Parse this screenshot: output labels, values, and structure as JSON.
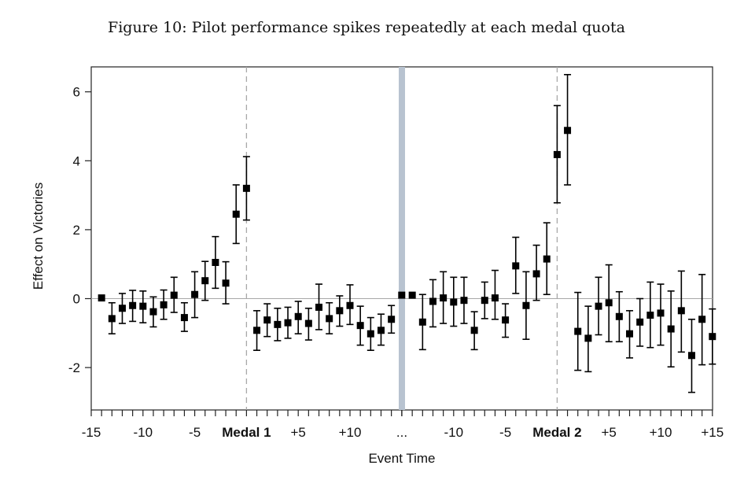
{
  "title": "Figure 10: Pilot performance spikes repeatedly at each medal quota",
  "chart_data": {
    "type": "scatter",
    "title": "Figure 10: Pilot performance spikes repeatedly at each medal quota",
    "xlabel": "Event Time",
    "ylabel": "Effect on Victories",
    "ylim": [
      -3.2,
      6.7
    ],
    "yticks": [
      -2,
      0,
      2,
      4,
      6
    ],
    "xlim": [
      -15,
      15
    ],
    "grid": false,
    "error_bars": true,
    "series": [
      {
        "segment": "Medal 1",
        "x": [
          -14,
          -13,
          -12,
          -11,
          -10,
          -9,
          -8,
          -7,
          -6,
          -5,
          -4,
          -3,
          -2,
          -1,
          0,
          1,
          2,
          3,
          4,
          5,
          6,
          7,
          8,
          9,
          10,
          11,
          12,
          13,
          14,
          15
        ],
        "y": [
          0.02,
          -0.58,
          -0.28,
          -0.2,
          -0.22,
          -0.38,
          -0.18,
          0.1,
          -0.55,
          0.12,
          0.52,
          1.05,
          0.45,
          2.45,
          3.2,
          -0.92,
          -0.62,
          -0.75,
          -0.7,
          -0.52,
          -0.72,
          -0.25,
          -0.58,
          -0.35,
          -0.2,
          -0.78,
          -1.02,
          -0.92,
          -0.6,
          0.1
        ],
        "lo": [
          null,
          -1.02,
          -0.72,
          -0.66,
          -0.7,
          -0.82,
          -0.6,
          -0.4,
          -0.95,
          -0.55,
          -0.05,
          0.3,
          -0.15,
          1.6,
          2.28,
          -1.5,
          -1.1,
          -1.22,
          -1.15,
          -1.02,
          -1.2,
          -0.9,
          -1.02,
          -0.8,
          -0.75,
          -1.35,
          -1.5,
          -1.35,
          -1.0,
          null
        ],
        "hi": [
          null,
          -0.12,
          0.15,
          0.24,
          0.22,
          0.05,
          0.25,
          0.62,
          -0.12,
          0.78,
          1.08,
          1.8,
          1.07,
          3.3,
          4.12,
          -0.35,
          -0.15,
          -0.28,
          -0.25,
          -0.08,
          -0.28,
          0.42,
          -0.12,
          0.08,
          0.4,
          -0.22,
          -0.55,
          -0.45,
          -0.2,
          null
        ]
      },
      {
        "segment": "Medal 2",
        "x": [
          -14,
          -13,
          -12,
          -11,
          -10,
          -9,
          -8,
          -7,
          -6,
          -5,
          -4,
          -3,
          -2,
          -1,
          0,
          1,
          2,
          3,
          4,
          5,
          6,
          7,
          8,
          9,
          10,
          11,
          12,
          13,
          14,
          15
        ],
        "y": [
          0.1,
          -0.68,
          -0.08,
          0.02,
          -0.1,
          -0.05,
          -0.92,
          -0.05,
          0.02,
          -0.62,
          0.95,
          -0.2,
          0.72,
          1.15,
          4.18,
          4.88,
          -0.95,
          -1.15,
          -0.22,
          -0.12,
          -0.52,
          -1.02,
          -0.68,
          -0.48,
          -0.42,
          -0.88,
          -0.35,
          -1.65,
          -0.6,
          -1.1
        ],
        "lo": [
          null,
          -1.48,
          -0.82,
          -0.72,
          -0.8,
          -0.72,
          -1.48,
          -0.58,
          -0.6,
          -1.12,
          0.15,
          -1.18,
          -0.05,
          0.12,
          2.78,
          3.3,
          -2.08,
          -2.12,
          -1.05,
          -1.25,
          -1.25,
          -1.72,
          -1.38,
          -1.42,
          -1.35,
          -1.98,
          -1.55,
          -2.72,
          -1.92,
          -1.9
        ],
        "hi": [
          null,
          0.12,
          0.55,
          0.78,
          0.62,
          0.62,
          -0.38,
          0.48,
          0.82,
          -0.15,
          1.78,
          0.78,
          1.55,
          2.2,
          5.6,
          6.5,
          0.18,
          -0.22,
          0.62,
          0.98,
          0.2,
          -0.35,
          0.0,
          0.48,
          0.42,
          0.22,
          0.8,
          -0.6,
          0.7,
          -0.3
        ]
      }
    ],
    "x_tick_labels": {
      "left": [
        "-15",
        "-10",
        "-5",
        "Medal 1",
        "+5",
        "+10"
      ],
      "gap": "...",
      "right": [
        "-10",
        "-5",
        "Medal 2",
        "+5",
        "+10",
        "+15"
      ]
    },
    "bold_tick_labels": [
      "Medal 1",
      "Medal 2"
    ],
    "reference_lines": [
      "y = 0",
      "Medal 1",
      "Medal 2"
    ],
    "colors": {
      "marker": "#000000",
      "zero_line": "#a8a8a8",
      "medal_line": "#a8a8a8",
      "separator_band": "#b8c3d0"
    }
  }
}
